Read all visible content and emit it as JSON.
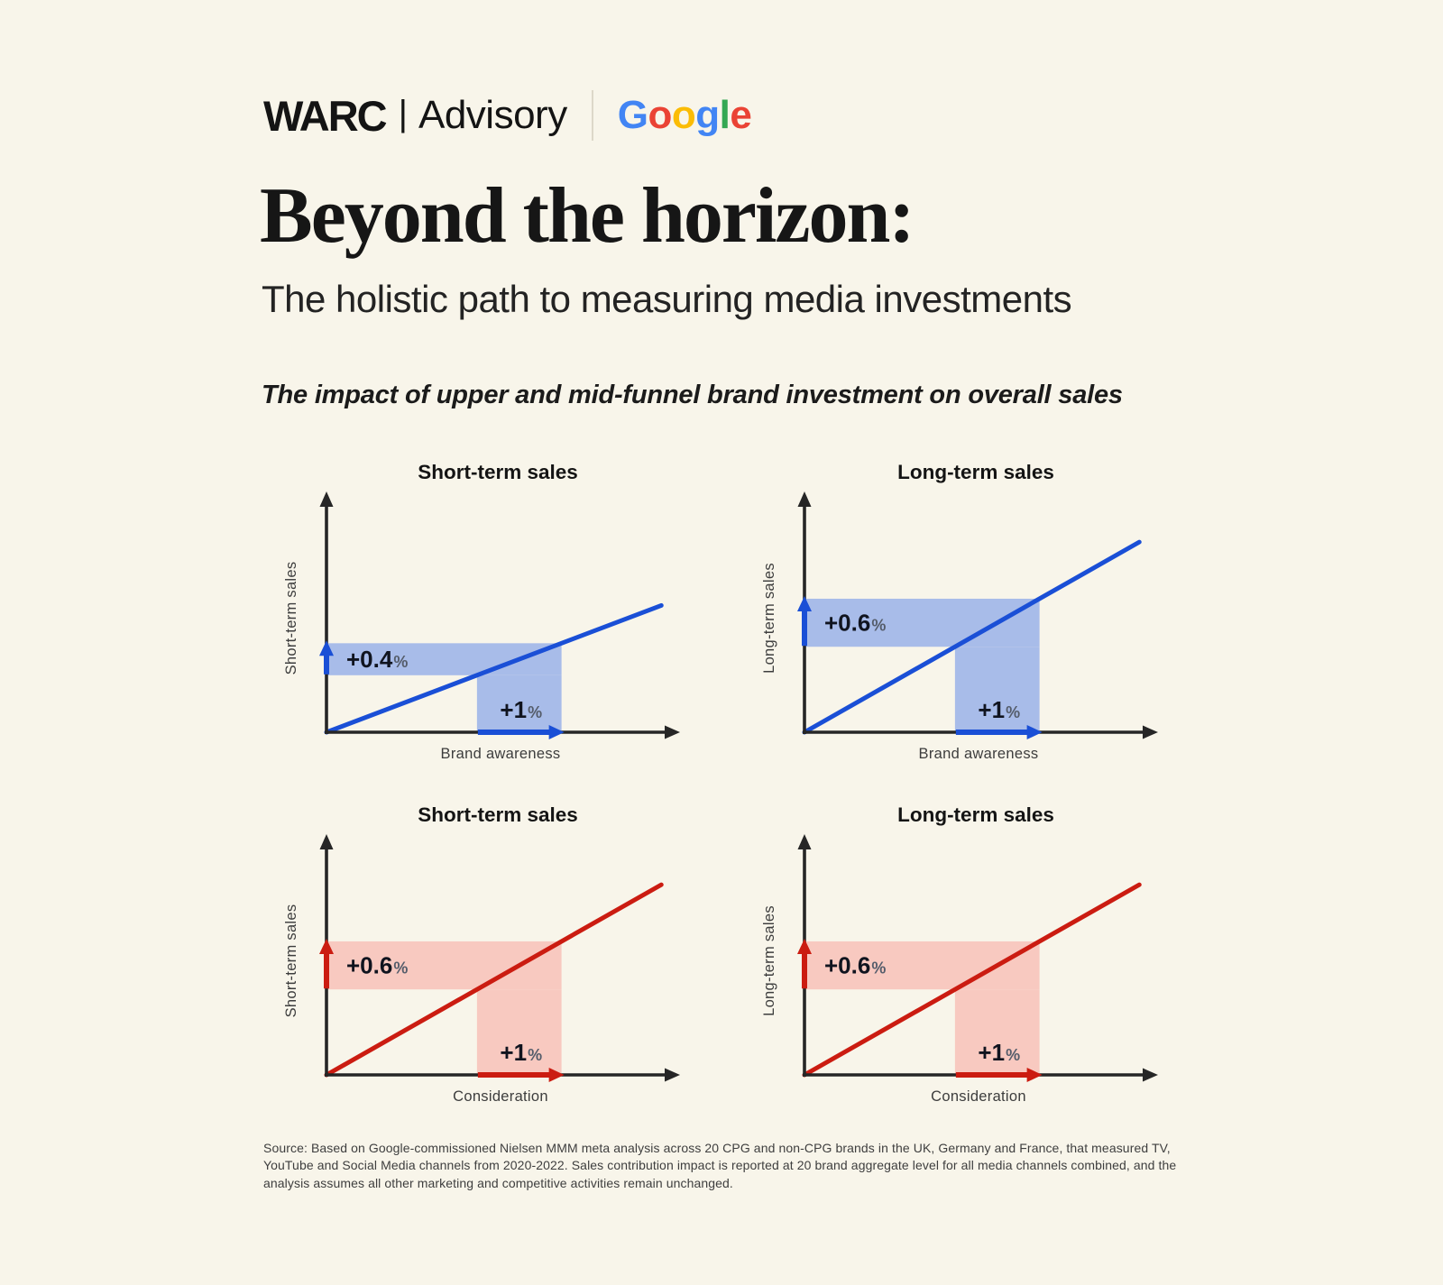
{
  "page": {
    "background": "#f8f5ea"
  },
  "header": {
    "warc": "WARC",
    "separator": "|",
    "advisory": "Advisory",
    "google_letters": [
      {
        "ch": "G",
        "color": "#4285F4"
      },
      {
        "ch": "o",
        "color": "#EA4335"
      },
      {
        "ch": "o",
        "color": "#FBBC05"
      },
      {
        "ch": "g",
        "color": "#4285F4"
      },
      {
        "ch": "l",
        "color": "#34A853"
      },
      {
        "ch": "e",
        "color": "#EA4335"
      }
    ]
  },
  "title": "Beyond the horizon:",
  "subtitle": "The holistic path to measuring media investments",
  "section_heading": "The impact of upper and mid-funnel brand investment on overall sales",
  "source_note": "Source: Based on Google-commissioned Nielsen MMM meta analysis across 20 CPG and non-CPG brands in the UK, Germany and France, that measured TV, YouTube and Social Media channels from 2020-2022. Sales contribution impact is reported at 20 brand aggregate level for all media channels combined, and the analysis assumes all other marketing and competitive activities remain unchanged.",
  "chart_data": [
    {
      "type": "line",
      "title": "Short-term sales",
      "xlabel": "Brand awareness",
      "ylabel": "Short-term sales",
      "x_change": "+1%",
      "y_change": "+0.4%",
      "x_change_value": 1.0,
      "y_change_value": 0.4,
      "line_color": "#1a4fd6",
      "band_color": "#a8bce9",
      "grid": false,
      "axis_ticks": "none"
    },
    {
      "type": "line",
      "title": "Long-term sales",
      "xlabel": "Brand awareness",
      "ylabel": "Long-term sales",
      "x_change": "+1%",
      "y_change": "+0.6%",
      "x_change_value": 1.0,
      "y_change_value": 0.6,
      "line_color": "#1a4fd6",
      "band_color": "#a8bce9",
      "grid": false,
      "axis_ticks": "none"
    },
    {
      "type": "line",
      "title": "Short-term sales",
      "xlabel": "Consideration",
      "ylabel": "Short-term sales",
      "x_change": "+1%",
      "y_change": "+0.6%",
      "x_change_value": 1.0,
      "y_change_value": 0.6,
      "line_color": "#cb1c11",
      "band_color": "#f8c9c0",
      "grid": false,
      "axis_ticks": "none"
    },
    {
      "type": "line",
      "title": "Long-term sales",
      "xlabel": "Consideration",
      "ylabel": "Long-term sales",
      "x_change": "+1%",
      "y_change": "+0.6%",
      "x_change_value": 1.0,
      "y_change_value": 0.6,
      "line_color": "#cb1c11",
      "band_color": "#f8c9c0",
      "grid": false,
      "axis_ticks": "none"
    }
  ]
}
